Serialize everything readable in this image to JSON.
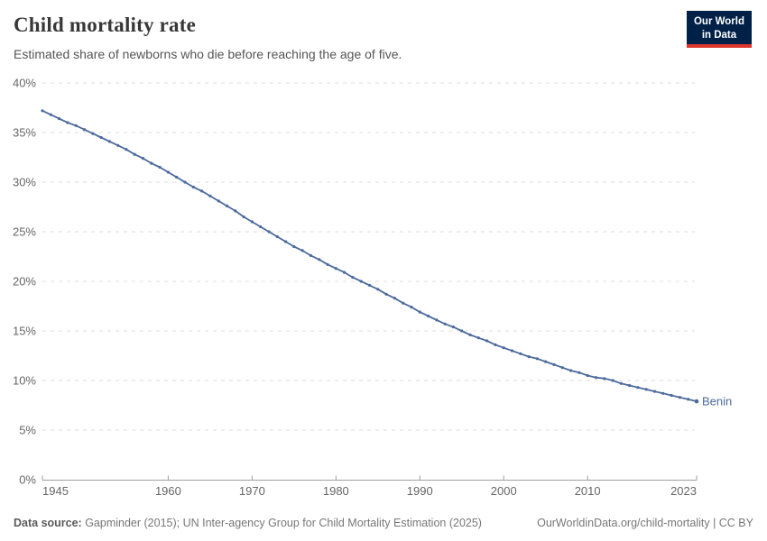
{
  "header": {
    "title": "Child mortality rate",
    "subtitle": "Estimated share of newborns who die before reaching the age of five.",
    "logo": {
      "line1": "Our World",
      "line2": "in Data"
    }
  },
  "footer": {
    "datasource_label": "Data source:",
    "datasource_text": " Gapminder (2015); UN Inter-agency Group for Child Mortality Estimation (2025)",
    "link_text": "OurWorldinData.org/child-mortality | CC BY"
  },
  "colors": {
    "series_blue": "#4C6A9C",
    "grid": "#DDDDDD",
    "axis": "#9E9E9E",
    "tick_label": "#666666",
    "title": "#383838",
    "subtitle": "#555555",
    "footer": "#777777",
    "logo_bg": "#002147",
    "logo_red": "#DC352C"
  },
  "chart_data": {
    "type": "line",
    "title": "Child mortality rate",
    "subtitle": "Estimated share of newborns who die before reaching the age of five.",
    "xlabel": "",
    "ylabel": "",
    "xlim": [
      1945,
      2023
    ],
    "ylim": [
      0,
      40
    ],
    "x_ticks": [
      1945,
      1960,
      1970,
      1980,
      1990,
      2000,
      2010,
      2023
    ],
    "y_ticks": [
      0,
      5,
      10,
      15,
      20,
      25,
      30,
      35,
      40
    ],
    "y_tick_suffix": "%",
    "grid": "horizontal-dashed",
    "legend_position": "end-of-line-label",
    "series": [
      {
        "name": "Benin",
        "color": "#4C6A9C",
        "points": [
          [
            1945,
            37.2
          ],
          [
            1946,
            36.8
          ],
          [
            1947,
            36.4
          ],
          [
            1948,
            36.0
          ],
          [
            1949,
            35.7
          ],
          [
            1950,
            35.3
          ],
          [
            1951,
            34.9
          ],
          [
            1952,
            34.5
          ],
          [
            1953,
            34.1
          ],
          [
            1954,
            33.7
          ],
          [
            1955,
            33.3
          ],
          [
            1956,
            32.8
          ],
          [
            1957,
            32.4
          ],
          [
            1958,
            31.9
          ],
          [
            1959,
            31.5
          ],
          [
            1960,
            31.0
          ],
          [
            1961,
            30.5
          ],
          [
            1962,
            30.0
          ],
          [
            1963,
            29.5
          ],
          [
            1964,
            29.1
          ],
          [
            1965,
            28.6
          ],
          [
            1966,
            28.1
          ],
          [
            1967,
            27.6
          ],
          [
            1968,
            27.1
          ],
          [
            1969,
            26.5
          ],
          [
            1970,
            26.0
          ],
          [
            1971,
            25.5
          ],
          [
            1972,
            25.0
          ],
          [
            1973,
            24.5
          ],
          [
            1974,
            24.0
          ],
          [
            1975,
            23.5
          ],
          [
            1976,
            23.1
          ],
          [
            1977,
            22.6
          ],
          [
            1978,
            22.2
          ],
          [
            1979,
            21.7
          ],
          [
            1980,
            21.3
          ],
          [
            1981,
            20.9
          ],
          [
            1982,
            20.4
          ],
          [
            1983,
            20.0
          ],
          [
            1984,
            19.6
          ],
          [
            1985,
            19.2
          ],
          [
            1986,
            18.7
          ],
          [
            1987,
            18.3
          ],
          [
            1988,
            17.8
          ],
          [
            1989,
            17.4
          ],
          [
            1990,
            16.9
          ],
          [
            1991,
            16.5
          ],
          [
            1992,
            16.1
          ],
          [
            1993,
            15.7
          ],
          [
            1994,
            15.4
          ],
          [
            1995,
            15.0
          ],
          [
            1996,
            14.6
          ],
          [
            1997,
            14.3
          ],
          [
            1998,
            14.0
          ],
          [
            1999,
            13.6
          ],
          [
            2000,
            13.3
          ],
          [
            2001,
            13.0
          ],
          [
            2002,
            12.7
          ],
          [
            2003,
            12.4
          ],
          [
            2004,
            12.2
          ],
          [
            2005,
            11.9
          ],
          [
            2006,
            11.6
          ],
          [
            2007,
            11.3
          ],
          [
            2008,
            11.0
          ],
          [
            2009,
            10.8
          ],
          [
            2010,
            10.5
          ],
          [
            2011,
            10.3
          ],
          [
            2012,
            10.2
          ],
          [
            2013,
            10.0
          ],
          [
            2014,
            9.7
          ],
          [
            2015,
            9.5
          ],
          [
            2016,
            9.3
          ],
          [
            2017,
            9.1
          ],
          [
            2018,
            8.9
          ],
          [
            2019,
            8.7
          ],
          [
            2020,
            8.5
          ],
          [
            2021,
            8.3
          ],
          [
            2022,
            8.1
          ],
          [
            2023,
            7.9
          ]
        ]
      }
    ]
  }
}
